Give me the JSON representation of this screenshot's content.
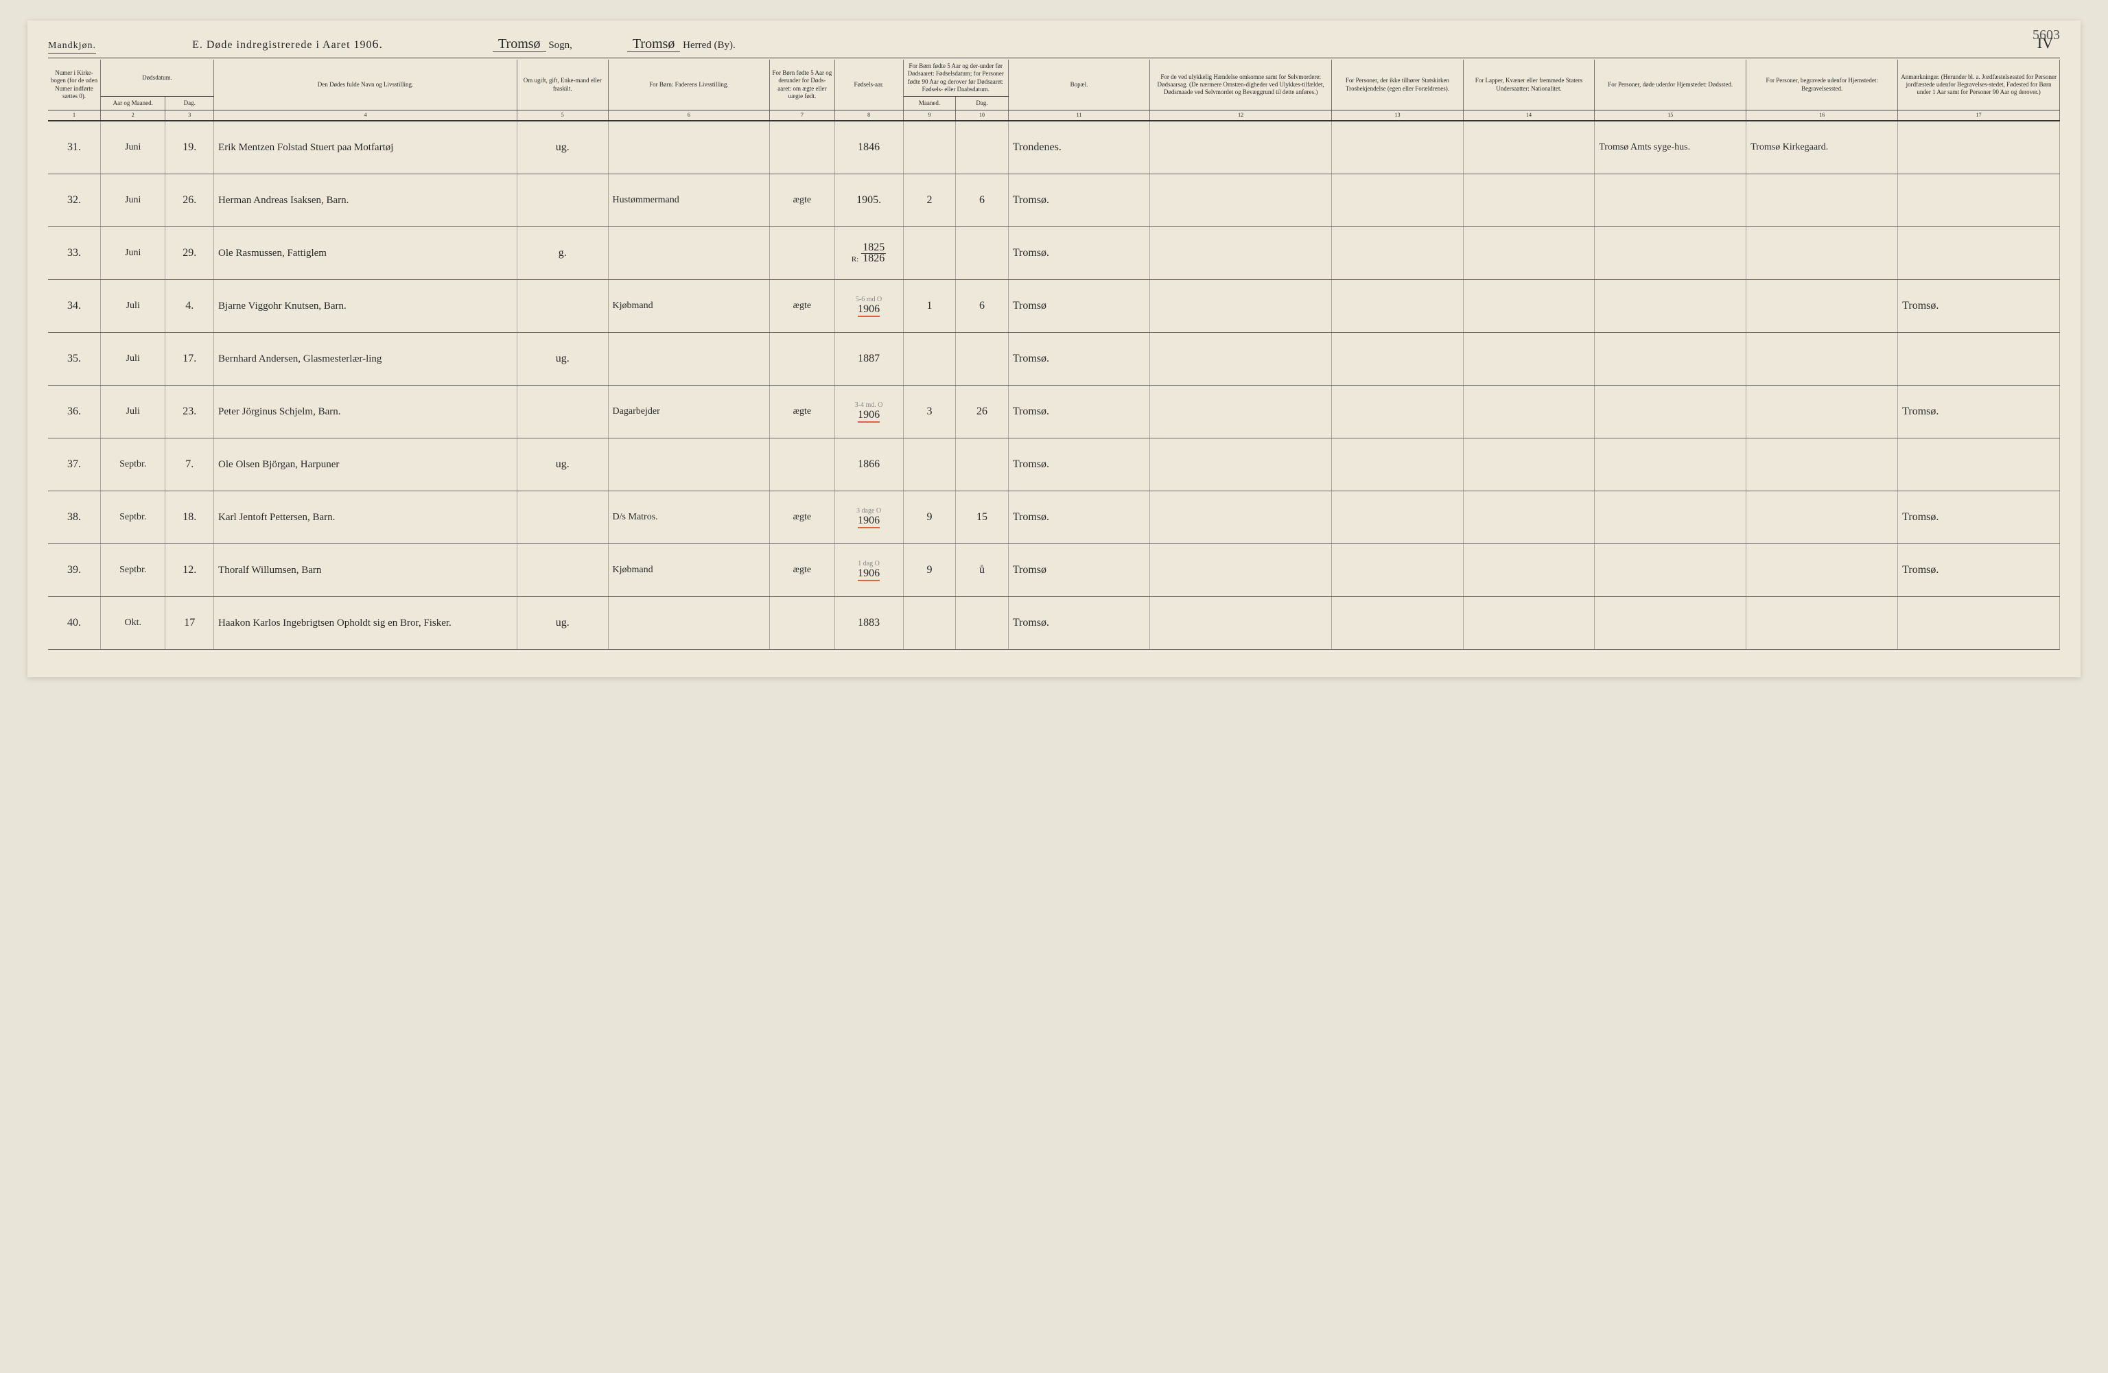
{
  "page_number_top": "5603",
  "gender_label": "Mandkjøn.",
  "title_prefix": "E.   Døde indregistrerede i Aaret 190",
  "title_year_suffix": "6.",
  "sogn_value": "Tromsø",
  "sogn_label": "Sogn,",
  "herred_value": "Tromsø",
  "herred_label": "Herred (By).",
  "roman": "IV",
  "headers": {
    "c1": "Numer i Kirke-bogen (for de uden Numer indførte sættes 0).",
    "c2_top": "Dødsdatum.",
    "c2_aar": "Aar og Maaned.",
    "c2_dag": "Dag.",
    "c4": "Den Dødes fulde Navn og Livsstilling.",
    "c5": "Om ugift, gift, Enke-mand eller fraskilt.",
    "c6": "For Børn: Faderens Livsstilling.",
    "c7": "For Børn fødte 5 Aar og derunder for Døds-aaret: om ægte eller uægte født.",
    "c8": "Fødsels-aar.",
    "c9_10_top": "For Børn fødte 5 Aar og der-under før Dødsaaret: Fødselsdatum; for Personer fødte 90 Aar og derover før Dødsaaret: Fødsels- eller Daabsdatum.",
    "c9": "Maaned.",
    "c10": "Dag.",
    "c11": "Bopæl.",
    "c12": "For de ved ulykkelig Hændelse omkomne samt for Selvmordere: Dødsaarsag. (De nærmere Omstæn-digheder ved Ulykkes-tilfældet, Dødsmaade ved Selvmordet og Bevæggrund til dette anføres.)",
    "c13": "For Personer, der ikke tilhører Statskirken Trosbekjendelse (egen eller Forældrenes).",
    "c14": "For Lapper, Kvæner eller fremmede Staters Undersaatter: Nationalitet.",
    "c15": "For Personer, døde udenfor Hjemstedet: Dødssted.",
    "c16": "For Personer, begravede udenfor Hjemstedet: Begravelsessted.",
    "c17": "Anmærkninger. (Herunder bl. a. Jordfæstelsessted for Personer jordfæstede udenfor Begravelses-stedet, Fødested for Børn under 1 Aar samt for Personer 90 Aar og derover.)"
  },
  "colnums": [
    "1",
    "2",
    "3",
    "4",
    "5",
    "6",
    "7",
    "8",
    "9",
    "10",
    "11",
    "12",
    "13",
    "14",
    "15",
    "16",
    "17"
  ],
  "rows": [
    {
      "num": "31.",
      "month": "Juni",
      "day": "19.",
      "name": "Erik Mentzen Folstad Stuert paa Motfartøj",
      "marital": "ug.",
      "father": "",
      "legit": "",
      "birth_year": "1846",
      "b_month": "",
      "b_day": "",
      "residence": "Trondenes.",
      "c15": "Tromsø Amts syge-hus.",
      "c16": "Tromsø Kirkegaard.",
      "c17": ""
    },
    {
      "num": "32.",
      "month": "Juni",
      "day": "26.",
      "name": "Herman Andreas Isaksen, Barn.",
      "marital": "",
      "father": "Hustømmermand",
      "legit": "ægte",
      "birth_year": "1905.",
      "b_month": "2",
      "b_day": "6",
      "residence": "Tromsø.",
      "c15": "",
      "c16": "",
      "c17": ""
    },
    {
      "num": "33.",
      "month": "Juni",
      "day": "29.",
      "name": "Ole Rasmussen, Fattiglem",
      "marital": "g.",
      "father": "",
      "legit": "",
      "birth_year_stacked_top": "1825",
      "birth_year_stacked_bot": "1826",
      "birth_year_prefix": "R:",
      "b_month": "",
      "b_day": "",
      "residence": "Tromsø.",
      "c15": "",
      "c16": "",
      "c17": ""
    },
    {
      "num": "34.",
      "month": "Juli",
      "day": "4.",
      "name": "Bjarne Viggohr Knutsen, Barn.",
      "marital": "",
      "father": "Kjøbmand",
      "legit": "ægte",
      "birth_year": "1906",
      "red": true,
      "pencil": "5-6 md O",
      "b_month": "1",
      "b_day": "6",
      "residence": "Tromsø",
      "c15": "",
      "c16": "",
      "c17": "Tromsø."
    },
    {
      "num": "35.",
      "month": "Juli",
      "day": "17.",
      "name": "Bernhard Andersen, Glasmesterlær-ling",
      "marital": "ug.",
      "father": "",
      "legit": "",
      "birth_year": "1887",
      "b_month": "",
      "b_day": "",
      "residence": "Tromsø.",
      "c15": "",
      "c16": "",
      "c17": ""
    },
    {
      "num": "36.",
      "month": "Juli",
      "day": "23.",
      "name": "Peter Jörginus Schjelm, Barn.",
      "marital": "",
      "father": "Dagarbejder",
      "legit": "ægte",
      "birth_year": "1906",
      "red": true,
      "pencil": "3-4 md. O",
      "b_month": "3",
      "b_day": "26",
      "residence": "Tromsø.",
      "c15": "",
      "c16": "",
      "c17": "Tromsø."
    },
    {
      "num": "37.",
      "month": "Septbr.",
      "day": "7.",
      "name": "Ole Olsen Björgan, Harpuner",
      "marital": "ug.",
      "father": "",
      "legit": "",
      "birth_year": "1866",
      "b_month": "",
      "b_day": "",
      "residence": "Tromsø.",
      "c15": "",
      "c16": "",
      "c17": ""
    },
    {
      "num": "38.",
      "month": "Septbr.",
      "day": "18.",
      "name": "Karl Jentoft Pettersen, Barn.",
      "marital": "",
      "father": "D/s Matros.",
      "legit": "ægte",
      "birth_year": "1906",
      "red": true,
      "pencil": "3 dage O",
      "b_month": "9",
      "b_day": "15",
      "residence": "Tromsø.",
      "c15": "",
      "c16": "",
      "c17": "Tromsø."
    },
    {
      "num": "39.",
      "month": "Septbr.",
      "day": "12.",
      "name": "Thoralf Willumsen, Barn",
      "marital": "",
      "father": "Kjøbmand",
      "legit": "ægte",
      "birth_year": "1906",
      "red": true,
      "pencil": "1 dag O",
      "b_month": "9",
      "b_day": "ů",
      "residence": "Tromsø",
      "c15": "",
      "c16": "",
      "c17": "Tromsø."
    },
    {
      "num": "40.",
      "month": "Okt.",
      "day": "17",
      "name": "Haakon Karlos Ingebrigtsen Opholdt sig en Bror, Fisker.",
      "marital": "ug.",
      "father": "",
      "legit": "",
      "birth_year": "1883",
      "b_month": "",
      "b_day": "",
      "residence": "Tromsø.",
      "c15": "",
      "c16": "",
      "c17": ""
    }
  ]
}
